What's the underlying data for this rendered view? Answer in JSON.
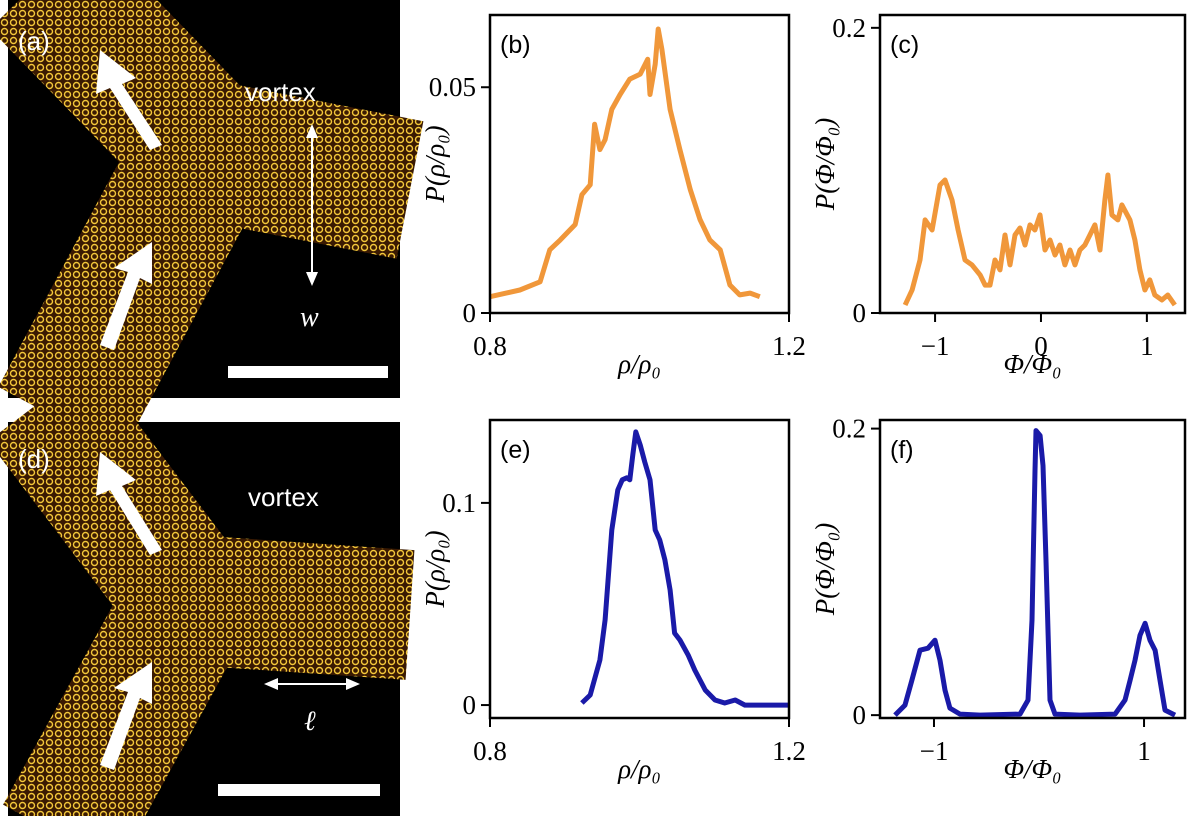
{
  "images": [
    {
      "label": "(a)",
      "annotations": [
        "vortex",
        "w"
      ]
    },
    {
      "label": "(d)",
      "annotations": [
        "vortex",
        "ℓ"
      ]
    }
  ],
  "chart_data": [
    {
      "type": "line",
      "title": "(b)",
      "x_label": "ρ/ρ₀",
      "y_label": "P(ρ/ρ₀)",
      "color": "#f0973a",
      "xlim": [
        0.8,
        1.2
      ],
      "xticks": [
        0.8,
        1.2
      ],
      "ylim": [
        0,
        0.066
      ],
      "yticks": [
        0,
        0.05
      ],
      "x": [
        0.8,
        0.84,
        0.867,
        0.88,
        0.894,
        0.914,
        0.923,
        0.934,
        0.94,
        0.947,
        0.954,
        0.963,
        0.974,
        0.987,
        1.001,
        1.011,
        1.014,
        1.021,
        1.025,
        1.03,
        1.041,
        1.054,
        1.068,
        1.081,
        1.094,
        1.108,
        1.121,
        1.134,
        1.148,
        1.161
      ],
      "values": [
        0.0036,
        0.0051,
        0.0069,
        0.014,
        0.0162,
        0.0196,
        0.0262,
        0.0284,
        0.0418,
        0.0362,
        0.0384,
        0.0451,
        0.0484,
        0.0518,
        0.0529,
        0.0562,
        0.0484,
        0.0551,
        0.0629,
        0.0584,
        0.0451,
        0.0362,
        0.0273,
        0.0207,
        0.0162,
        0.014,
        0.0062,
        0.004,
        0.0044,
        0.0036
      ]
    },
    {
      "type": "line",
      "title": "(c)",
      "x_label": "Φ/Φ₀",
      "y_label": "P(Φ/Φ₀)",
      "color": "#f0973a",
      "xlim": [
        -1.52,
        1.36
      ],
      "xticks": [
        {
          "value": -1,
          "label": "−1"
        },
        0,
        1
      ],
      "ylim": [
        0,
        0.209
      ],
      "yticks": [
        0,
        0.2
      ],
      "x": [
        -1.283,
        -1.217,
        -1.142,
        -1.094,
        -1.028,
        -0.953,
        -0.906,
        -0.84,
        -0.783,
        -0.717,
        -0.651,
        -0.575,
        -0.528,
        -0.481,
        -0.434,
        -0.387,
        -0.34,
        -0.292,
        -0.245,
        -0.198,
        -0.151,
        -0.104,
        -0.057,
        -0.009,
        0.038,
        0.085,
        0.132,
        0.179,
        0.226,
        0.274,
        0.321,
        0.368,
        0.415,
        0.462,
        0.509,
        0.557,
        0.604,
        0.632,
        0.67,
        0.726,
        0.764,
        0.84,
        0.887,
        0.934,
        0.981,
        1.028,
        1.075,
        1.142,
        1.198,
        1.264
      ],
      "values": [
        0.0056,
        0.0161,
        0.0372,
        0.0653,
        0.0582,
        0.0898,
        0.0933,
        0.0793,
        0.0582,
        0.0372,
        0.0337,
        0.0267,
        0.0196,
        0.0196,
        0.0372,
        0.0302,
        0.0547,
        0.0337,
        0.0547,
        0.0596,
        0.0477,
        0.0618,
        0.0582,
        0.0688,
        0.0442,
        0.0512,
        0.0407,
        0.0477,
        0.0337,
        0.0442,
        0.0337,
        0.0442,
        0.0477,
        0.0547,
        0.0618,
        0.0442,
        0.0793,
        0.0968,
        0.0688,
        0.0653,
        0.0758,
        0.0653,
        0.0512,
        0.0302,
        0.0161,
        0.0232,
        0.0126,
        0.0091,
        0.0126,
        0.0056
      ]
    },
    {
      "type": "line",
      "title": "(e)",
      "x_label": "ρ/ρ₀",
      "y_label": "P(ρ/ρ₀)",
      "color": "#1a1aa8",
      "xlim": [
        0.8,
        1.2
      ],
      "xticks": [
        0.8,
        1.2
      ],
      "ylim": [
        -0.0064,
        0.141
      ],
      "yticks": [
        0,
        0.1
      ],
      "x": [
        0.923,
        0.934,
        0.947,
        0.954,
        0.963,
        0.971,
        0.977,
        0.983,
        0.987,
        0.991,
        0.995,
        1.001,
        1.007,
        1.014,
        1.021,
        1.027,
        1.034,
        1.041,
        1.047,
        1.054,
        1.065,
        1.074,
        1.088,
        1.101,
        1.114,
        1.128,
        1.141,
        1.2
      ],
      "values": [
        0.001,
        0.005,
        0.0223,
        0.0421,
        0.0866,
        0.1064,
        0.1114,
        0.1124,
        0.1114,
        0.1238,
        0.1351,
        0.1287,
        0.1203,
        0.1114,
        0.0866,
        0.0817,
        0.0718,
        0.0569,
        0.0356,
        0.0322,
        0.0248,
        0.0173,
        0.0074,
        0.0025,
        0.001,
        0.0025,
        0,
        0
      ]
    },
    {
      "type": "line",
      "title": "(f)",
      "x_label": "Φ/Φ₀",
      "y_label": "P(Φ/Φ₀)",
      "color": "#1a1aa8",
      "xlim": [
        -1.514,
        1.39
      ],
      "xticks": [
        {
          "value": -1,
          "label": "−1"
        },
        1
      ],
      "ylim": [
        -0.002,
        0.206
      ],
      "yticks": [
        0,
        0.2
      ],
      "x": [
        -1.371,
        -1.276,
        -1.21,
        -1.133,
        -1.057,
        -0.99,
        -0.943,
        -0.895,
        -0.848,
        -0.752,
        -0.562,
        -0.181,
        -0.105,
        -0.067,
        -0.038,
        -0.029,
        0.01,
        0.038,
        0.067,
        0.105,
        0.152,
        0.39,
        0.724,
        0.819,
        0.867,
        0.914,
        0.962,
        1.01,
        1.057,
        1.105,
        1.152,
        1.2,
        1.295
      ],
      "values": [
        0,
        0.007,
        0.0244,
        0.0453,
        0.0467,
        0.0523,
        0.0383,
        0.0174,
        0.0049,
        0.0007,
        0,
        0.0007,
        0.0105,
        0.0662,
        0.1707,
        0.1986,
        0.1951,
        0.1742,
        0.108,
        0.0105,
        0.0007,
        0,
        0.0007,
        0.0105,
        0.0244,
        0.0383,
        0.0557,
        0.0641,
        0.0523,
        0.0453,
        0.0244,
        0.0035,
        0
      ]
    }
  ]
}
